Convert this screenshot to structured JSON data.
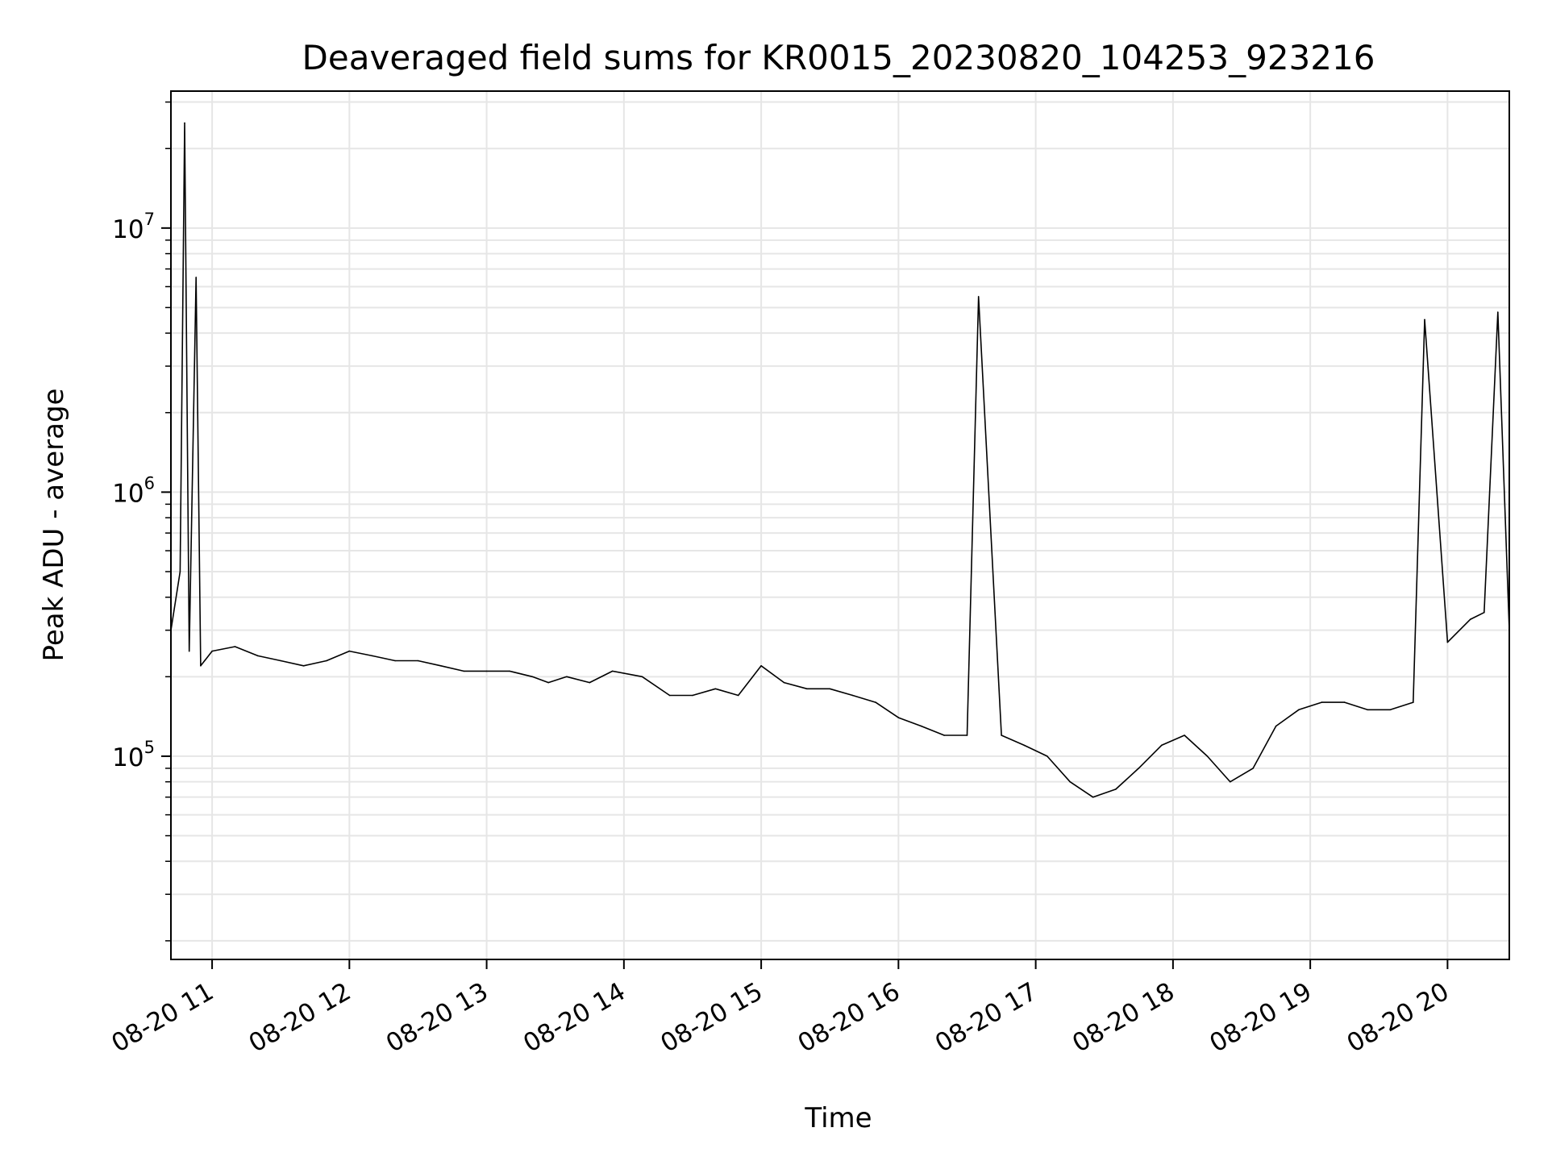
{
  "chart_data": {
    "type": "line",
    "title": "Deaveraged field sums for KR0015_20230820_104253_923216",
    "xlabel": "Time",
    "ylabel": "Peak ADU - average",
    "xscale": "time",
    "yscale": "log",
    "xlim": [
      "2023-08-20 10:42",
      "2023-08-20 20:27"
    ],
    "ylim": [
      17000,
      33000000
    ],
    "grid": true,
    "line_color": "#000000",
    "grid_color": "#e6e6e6",
    "x_ticks": [
      {
        "value": "2023-08-20 11:00",
        "label": "08-20 11"
      },
      {
        "value": "2023-08-20 12:00",
        "label": "08-20 12"
      },
      {
        "value": "2023-08-20 13:00",
        "label": "08-20 13"
      },
      {
        "value": "2023-08-20 14:00",
        "label": "08-20 14"
      },
      {
        "value": "2023-08-20 15:00",
        "label": "08-20 15"
      },
      {
        "value": "2023-08-20 16:00",
        "label": "08-20 16"
      },
      {
        "value": "2023-08-20 17:00",
        "label": "08-20 17"
      },
      {
        "value": "2023-08-20 18:00",
        "label": "08-20 18"
      },
      {
        "value": "2023-08-20 19:00",
        "label": "08-20 19"
      },
      {
        "value": "2023-08-20 20:00",
        "label": "08-20 20"
      }
    ],
    "y_ticks": [
      {
        "value": 100000,
        "base": "10",
        "exp": "5"
      },
      {
        "value": 1000000,
        "base": "10",
        "exp": "6"
      },
      {
        "value": 10000000,
        "base": "10",
        "exp": "7"
      }
    ],
    "series": [
      {
        "x": [
          "2023-08-20 10:42",
          "2023-08-20 10:46",
          "2023-08-20 10:48",
          "2023-08-20 10:50",
          "2023-08-20 10:53",
          "2023-08-20 10:55",
          "2023-08-20 11:00",
          "2023-08-20 11:10",
          "2023-08-20 11:20",
          "2023-08-20 11:30",
          "2023-08-20 11:40",
          "2023-08-20 11:50",
          "2023-08-20 12:00",
          "2023-08-20 12:10",
          "2023-08-20 12:20",
          "2023-08-20 12:30",
          "2023-08-20 12:40",
          "2023-08-20 12:50",
          "2023-08-20 13:00",
          "2023-08-20 13:10",
          "2023-08-20 13:20",
          "2023-08-20 13:27",
          "2023-08-20 13:35",
          "2023-08-20 13:45",
          "2023-08-20 13:55",
          "2023-08-20 14:08",
          "2023-08-20 14:20",
          "2023-08-20 14:30",
          "2023-08-20 14:40",
          "2023-08-20 14:50",
          "2023-08-20 15:00",
          "2023-08-20 15:10",
          "2023-08-20 15:20",
          "2023-08-20 15:30",
          "2023-08-20 15:40",
          "2023-08-20 15:50",
          "2023-08-20 16:00",
          "2023-08-20 16:10",
          "2023-08-20 16:20",
          "2023-08-20 16:30",
          "2023-08-20 16:35",
          "2023-08-20 16:45",
          "2023-08-20 16:55",
          "2023-08-20 17:05",
          "2023-08-20 17:15",
          "2023-08-20 17:25",
          "2023-08-20 17:35",
          "2023-08-20 17:45",
          "2023-08-20 17:55",
          "2023-08-20 18:05",
          "2023-08-20 18:15",
          "2023-08-20 18:25",
          "2023-08-20 18:35",
          "2023-08-20 18:45",
          "2023-08-20 18:55",
          "2023-08-20 19:05",
          "2023-08-20 19:15",
          "2023-08-20 19:25",
          "2023-08-20 19:35",
          "2023-08-20 19:45",
          "2023-08-20 19:50",
          "2023-08-20 20:00",
          "2023-08-20 20:10",
          "2023-08-20 20:16",
          "2023-08-20 20:22",
          "2023-08-20 20:27"
        ],
        "y": [
          300000,
          500000,
          25000000,
          250000,
          6500000,
          220000,
          250000,
          260000,
          240000,
          230000,
          220000,
          230000,
          250000,
          240000,
          230000,
          230000,
          220000,
          210000,
          210000,
          210000,
          200000,
          190000,
          200000,
          190000,
          210000,
          200000,
          170000,
          170000,
          180000,
          170000,
          220000,
          190000,
          180000,
          180000,
          170000,
          160000,
          140000,
          130000,
          120000,
          120000,
          5500000,
          120000,
          110000,
          100000,
          80000,
          70000,
          75000,
          90000,
          110000,
          120000,
          100000,
          80000,
          90000,
          130000,
          150000,
          160000,
          160000,
          150000,
          150000,
          160000,
          4500000,
          270000,
          330000,
          350000,
          4800000,
          300000
        ]
      }
    ]
  }
}
